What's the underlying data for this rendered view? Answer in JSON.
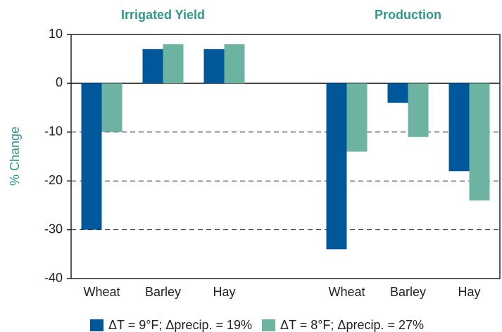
{
  "chart_data": {
    "type": "bar",
    "ylabel": "% Change",
    "annotations": [
      "Irrigated Yield",
      "Production"
    ],
    "categories": [
      "Wheat",
      "Barley",
      "Hay",
      null,
      "Wheat",
      "Barley",
      "Hay"
    ],
    "series": [
      {
        "name": "ΔT = 9°F; Δprecip. = 19%",
        "color": "#00589b",
        "values": [
          -30,
          7,
          7,
          null,
          -34,
          -4,
          -18
        ]
      },
      {
        "name": "ΔT = 8°F; Δprecip. = 27%",
        "color": "#6cb3a2",
        "values": [
          -10,
          8,
          8,
          null,
          -14,
          -11,
          -24
        ]
      }
    ],
    "ylim": [
      -40,
      10
    ],
    "yticks": [
      -40,
      -30,
      -20,
      -10,
      0,
      10
    ],
    "grid": true
  }
}
